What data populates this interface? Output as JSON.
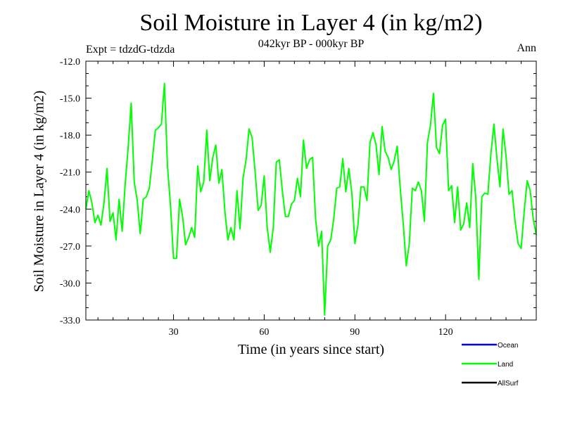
{
  "chart_data": {
    "type": "line",
    "title": "Soil Moisture in Layer 4 (in kg/m2)",
    "subtitle": "042kyr BP - 000kyr BP",
    "experiment": "Expt = tdzdG-tdzda",
    "season": "Ann",
    "xlabel": "Time (in years since start)",
    "ylabel": "Soil Moisture in Layer 4 (in kg/m2)",
    "xlim": [
      1,
      150
    ],
    "ylim": [
      -33.0,
      -12.0
    ],
    "xticks": [
      30,
      60,
      90,
      120
    ],
    "yticks": [
      "-12.0",
      "-15.0",
      "-18.0",
      "-21.0",
      "-24.0",
      "-27.0",
      "-30.0",
      "-33.0"
    ],
    "legend": [
      {
        "name": "Ocean",
        "color": "#0000ff"
      },
      {
        "name": "Land",
        "color": "#00ff00"
      },
      {
        "name": "AllSurf",
        "color": "#000000"
      }
    ],
    "series": [
      {
        "name": "Land",
        "color": "#00ff00",
        "x": [
          1,
          2,
          3,
          4,
          5,
          6,
          7,
          8,
          9,
          10,
          11,
          12,
          13,
          14,
          15,
          16,
          17,
          18,
          19,
          20,
          21,
          22,
          23,
          24,
          25,
          26,
          27,
          28,
          29,
          30,
          31,
          32,
          33,
          34,
          35,
          36,
          37,
          38,
          39,
          40,
          41,
          42,
          43,
          44,
          45,
          46,
          47,
          48,
          49,
          50,
          51,
          52,
          53,
          54,
          55,
          56,
          57,
          58,
          59,
          60,
          61,
          62,
          63,
          64,
          65,
          66,
          67,
          68,
          69,
          70,
          71,
          72,
          73,
          74,
          75,
          76,
          77,
          78,
          79,
          80,
          81,
          82,
          83,
          84,
          85,
          86,
          87,
          88,
          89,
          90,
          91,
          92,
          93,
          94,
          95,
          96,
          97,
          98,
          99,
          100,
          101,
          102,
          103,
          104,
          105,
          106,
          107,
          108,
          109,
          110,
          111,
          112,
          113,
          114,
          115,
          116,
          117,
          118,
          119,
          120,
          121,
          122,
          123,
          124,
          125,
          126,
          127,
          128,
          129,
          130,
          131,
          132,
          133,
          134,
          135,
          136,
          137,
          138,
          139,
          140,
          141,
          142,
          143,
          144,
          145,
          146,
          147,
          148,
          149,
          150
        ],
        "values": [
          -24.0,
          -22.5,
          -23.5,
          -25.1,
          -24.5,
          -25.3,
          -23.5,
          -20.7,
          -25.0,
          -24.3,
          -26.5,
          -23.2,
          -25.8,
          -22.0,
          -19.0,
          -15.4,
          -21.8,
          -23.3,
          -26.0,
          -23.2,
          -23.0,
          -22.3,
          -20.0,
          -17.6,
          -17.4,
          -17.1,
          -13.8,
          -20.5,
          -23.7,
          -28.0,
          -28.0,
          -23.2,
          -24.6,
          -26.9,
          -26.3,
          -25.5,
          -26.3,
          -20.5,
          -22.6,
          -21.8,
          -17.6,
          -21.7,
          -19.8,
          -18.8,
          -21.9,
          -20.8,
          -24.2,
          -26.5,
          -25.5,
          -26.5,
          -22.5,
          -25.6,
          -21.5,
          -20.0,
          -17.5,
          -18.2,
          -21.0,
          -24.1,
          -23.7,
          -21.3,
          -25.5,
          -27.5,
          -25.5,
          -20.2,
          -20.0,
          -22.5,
          -24.6,
          -24.6,
          -23.6,
          -23.3,
          -21.5,
          -23.0,
          -18.4,
          -20.7,
          -20.0,
          -19.8,
          -24.8,
          -27.0,
          -25.8,
          -32.6,
          -27.0,
          -26.5,
          -24.8,
          -22.3,
          -22.2,
          -19.9,
          -22.6,
          -20.7,
          -22.7,
          -26.8,
          -25.3,
          -22.2,
          -22.2,
          -23.3,
          -18.6,
          -17.8,
          -18.8,
          -21.2,
          -17.3,
          -19.3,
          -19.8,
          -20.8,
          -20.1,
          -18.9,
          -22.3,
          -25.2,
          -28.6,
          -26.8,
          -22.3,
          -22.5,
          -21.8,
          -22.5,
          -25.0,
          -18.6,
          -17.2,
          -14.6,
          -19.0,
          -19.5,
          -17.2,
          -16.7,
          -22.5,
          -22.1,
          -25.1,
          -22.2,
          -25.7,
          -25.2,
          -23.5,
          -25.5,
          -20.3,
          -23.1,
          -29.7,
          -23.0,
          -22.7,
          -22.8,
          -19.5,
          -17.1,
          -19.9,
          -22.2,
          -17.5,
          -19.7,
          -22.8,
          -22.5,
          -25.0,
          -26.8,
          -27.2,
          -24.2,
          -21.7,
          -22.5,
          -24.8,
          -26.1
        ]
      }
    ]
  }
}
